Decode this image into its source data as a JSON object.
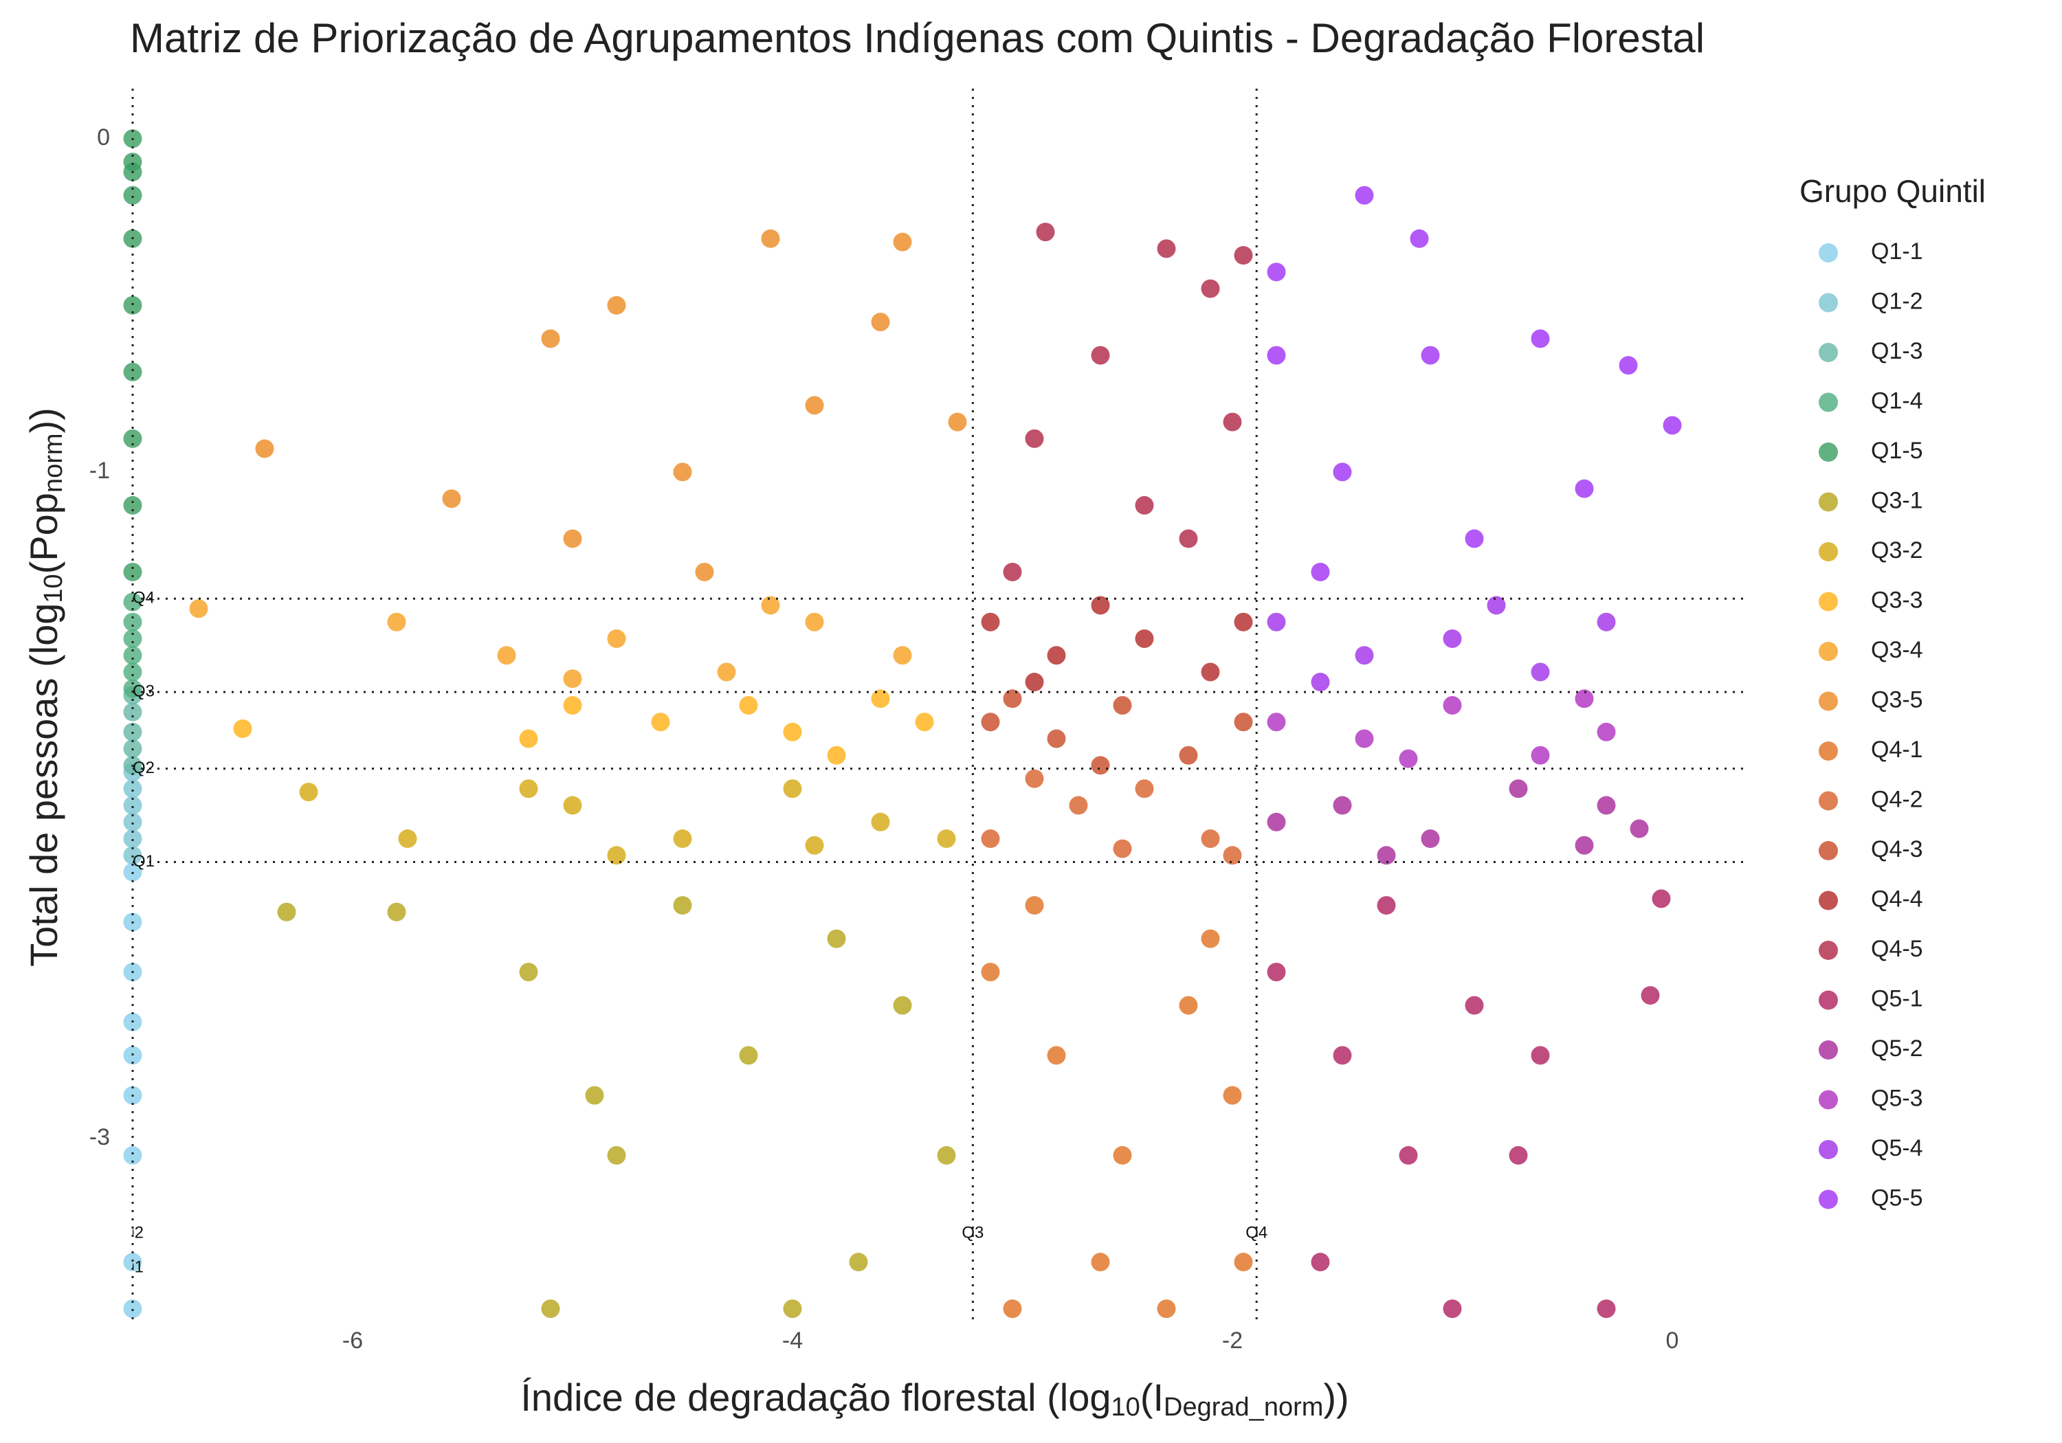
{
  "chart_data": {
    "type": "scatter",
    "title": "Matriz de Priorização de Agrupamentos Indígenas com Quintis - Degradação Florestal",
    "x_label": [
      "Índice de degradação florestal (log",
      "10",
      "(I",
      "Degrad_norm",
      "))"
    ],
    "y_label": [
      "Total de pessoas (log",
      "10",
      "(Pop",
      "norm",
      "))"
    ],
    "legend_title": "Grupo Quintil",
    "legend_position": "right",
    "grid": false,
    "xlim": [
      -7.05,
      0.35
    ],
    "ylim": [
      -3.55,
      0.15
    ],
    "xticks": [
      -6,
      -4,
      -2,
      0
    ],
    "yticks": [
      0,
      -1,
      -3
    ],
    "vlines": [
      {
        "value": -7.0,
        "label": "Q2"
      },
      {
        "value": -7.0,
        "label": "Q1"
      },
      {
        "value": -3.18,
        "label": "Q3"
      },
      {
        "value": -1.89,
        "label": "Q4"
      }
    ],
    "hlines": [
      {
        "value": -1.38,
        "label": "Q4"
      },
      {
        "value": -1.66,
        "label": "Q3"
      },
      {
        "value": -1.89,
        "label": "Q2"
      },
      {
        "value": -2.17,
        "label": "Q1"
      }
    ],
    "series": [
      {
        "name": "Q1-1",
        "color": "#87ceeb",
        "x": [
          -7.0,
          -7.0,
          -7.0,
          -7.0,
          -7.0,
          -7.0,
          -7.0,
          -7.0,
          -7.0
        ],
        "y": [
          -2.2,
          -2.35,
          -2.5,
          -2.65,
          -2.75,
          -2.87,
          -3.05,
          -3.37,
          -3.51
        ]
      },
      {
        "name": "Q1-2",
        "color": "#7cc6d2",
        "x": [
          -7.0,
          -7.0,
          -7.0,
          -7.0,
          -7.0,
          -7.0
        ],
        "y": [
          -1.9,
          -1.95,
          -2.0,
          -2.05,
          -2.1,
          -2.15
        ]
      },
      {
        "name": "Q1-3",
        "color": "#66b8a6",
        "x": [
          -7.0,
          -7.0,
          -7.0,
          -7.0,
          -7.0
        ],
        "y": [
          -1.67,
          -1.72,
          -1.78,
          -1.83,
          -1.88
        ]
      },
      {
        "name": "Q1-4",
        "color": "#4fae80",
        "x": [
          -7.0,
          -7.0,
          -7.0,
          -7.0,
          -7.0,
          -7.0
        ],
        "y": [
          -1.39,
          -1.45,
          -1.5,
          -1.55,
          -1.6,
          -1.65
        ]
      },
      {
        "name": "Q1-5",
        "color": "#3b9e62",
        "x": [
          -7.0,
          -7.0,
          -7.0,
          -7.0,
          -7.0,
          -7.0,
          -7.0,
          -7.0,
          -7.0,
          -7.0
        ],
        "y": [
          0,
          -0.07,
          -0.1,
          -0.17,
          -0.3,
          -0.5,
          -0.7,
          -0.9,
          -1.1,
          -1.3
        ]
      },
      {
        "name": "Q3-1",
        "color": "#b5a51a",
        "x": [
          -6.3,
          -5.8,
          -5.2,
          -4.8,
          -4.9,
          -4.2,
          -3.7,
          -3.5,
          -3.8,
          -5.1,
          -4.0,
          -3.3,
          -4.5
        ],
        "y": [
          -2.32,
          -2.32,
          -2.5,
          -3.05,
          -2.87,
          -2.75,
          -3.37,
          -2.6,
          -2.4,
          -3.51,
          -3.51,
          -3.05,
          -2.3
        ]
      },
      {
        "name": "Q3-2",
        "color": "#d4a90f",
        "x": [
          -6.2,
          -5.75,
          -5.0,
          -4.5,
          -4.0,
          -3.6,
          -3.3,
          -4.8,
          -5.2,
          -3.9
        ],
        "y": [
          -1.96,
          -2.1,
          -2.0,
          -2.1,
          -1.95,
          -2.05,
          -2.1,
          -2.15,
          -1.95,
          -2.12
        ]
      },
      {
        "name": "Q3-3",
        "color": "#ffb014",
        "x": [
          -6.5,
          -5.2,
          -4.6,
          -4.2,
          -3.8,
          -3.4,
          -5.0,
          -3.6,
          -4.0
        ],
        "y": [
          -1.77,
          -1.8,
          -1.75,
          -1.7,
          -1.85,
          -1.75,
          -1.7,
          -1.68,
          -1.78
        ]
      },
      {
        "name": "Q3-4",
        "color": "#f7a020",
        "x": [
          -6.7,
          -5.8,
          -5.3,
          -4.8,
          -4.3,
          -3.9,
          -3.5,
          -5.0,
          -4.1
        ],
        "y": [
          -1.41,
          -1.45,
          -1.55,
          -1.5,
          -1.6,
          -1.45,
          -1.55,
          -1.62,
          -1.4
        ]
      },
      {
        "name": "Q3-5",
        "color": "#ec8a22",
        "x": [
          -6.4,
          -5.55,
          -5.1,
          -4.8,
          -4.1,
          -3.5,
          -3.25,
          -4.5,
          -5.0,
          -3.9,
          -4.4,
          -3.6
        ],
        "y": [
          -0.93,
          -1.08,
          -0.6,
          -0.5,
          -0.3,
          -0.31,
          -0.85,
          -1.0,
          -1.2,
          -0.8,
          -1.3,
          -0.55
        ]
      },
      {
        "name": "Q4-1",
        "color": "#e07020",
        "x": [
          -3.1,
          -2.8,
          -2.5,
          -2.2,
          -2.0,
          -2.6,
          -3.0,
          -2.3,
          -2.9,
          -2.1,
          -1.95
        ],
        "y": [
          -2.5,
          -2.75,
          -3.05,
          -2.6,
          -2.87,
          -3.37,
          -3.51,
          -3.51,
          -2.3,
          -2.4,
          -3.37
        ]
      },
      {
        "name": "Q4-2",
        "color": "#d8602a",
        "x": [
          -3.1,
          -2.7,
          -2.4,
          -2.1,
          -2.9,
          -2.0,
          -2.5
        ],
        "y": [
          -2.1,
          -2.0,
          -1.95,
          -2.1,
          -1.92,
          -2.15,
          -2.13
        ]
      },
      {
        "name": "Q4-3",
        "color": "#c84a28",
        "x": [
          -3.1,
          -2.8,
          -2.5,
          -2.2,
          -1.95,
          -2.6,
          -3.0
        ],
        "y": [
          -1.75,
          -1.8,
          -1.7,
          -1.85,
          -1.75,
          -1.88,
          -1.68
        ]
      },
      {
        "name": "Q4-4",
        "color": "#b32828",
        "x": [
          -3.1,
          -2.8,
          -2.4,
          -2.1,
          -1.95,
          -2.6,
          -2.9
        ],
        "y": [
          -1.45,
          -1.55,
          -1.5,
          -1.6,
          -1.45,
          -1.4,
          -1.63
        ]
      },
      {
        "name": "Q4-5",
        "color": "#b02545",
        "x": [
          -2.85,
          -2.3,
          -1.95,
          -2.1,
          -2.6,
          -2.9,
          -2.4,
          -3.0,
          -2.0,
          -2.2
        ],
        "y": [
          -0.28,
          -0.33,
          -0.35,
          -0.45,
          -0.65,
          -0.9,
          -1.1,
          -1.3,
          -0.85,
          -1.2
        ]
      },
      {
        "name": "Q5-1",
        "color": "#b0205f",
        "x": [
          -1.8,
          -1.5,
          -1.2,
          -0.9,
          -0.6,
          -0.3,
          -1.6,
          -1.0,
          -0.1,
          -0.05,
          -1.3,
          -0.7
        ],
        "y": [
          -2.5,
          -2.75,
          -3.05,
          -2.6,
          -2.75,
          -3.51,
          -3.37,
          -3.51,
          -2.57,
          -2.28,
          -2.3,
          -3.05
        ]
      },
      {
        "name": "Q5-2",
        "color": "#a8289a",
        "x": [
          -1.8,
          -1.5,
          -1.1,
          -0.7,
          -0.4,
          -0.15,
          -0.3,
          -1.3
        ],
        "y": [
          -2.05,
          -2.0,
          -2.1,
          -1.95,
          -2.12,
          -2.07,
          -2.0,
          -2.15
        ]
      },
      {
        "name": "Q5-3",
        "color": "#b030c0",
        "x": [
          -1.8,
          -1.4,
          -1.0,
          -0.6,
          -0.3,
          -0.4,
          -1.2
        ],
        "y": [
          -1.75,
          -1.8,
          -1.7,
          -1.85,
          -1.78,
          -1.68,
          -1.86
        ]
      },
      {
        "name": "Q5-4",
        "color": "#a030e8",
        "x": [
          -1.8,
          -1.4,
          -1.0,
          -0.6,
          -0.3,
          -0.8,
          -1.6
        ],
        "y": [
          -1.45,
          -1.55,
          -1.5,
          -1.6,
          -1.45,
          -1.4,
          -1.63
        ]
      },
      {
        "name": "Q5-5",
        "color": "#a030f5",
        "x": [
          -1.4,
          -1.15,
          -1.8,
          -1.8,
          -1.1,
          -0.6,
          -0.2,
          0.0,
          -1.5,
          -0.9,
          -0.4,
          -1.6
        ],
        "y": [
          -0.17,
          -0.3,
          -0.4,
          -0.65,
          -0.65,
          -0.6,
          -0.68,
          -0.86,
          -1.0,
          -1.2,
          -1.05,
          -1.3
        ]
      }
    ]
  }
}
